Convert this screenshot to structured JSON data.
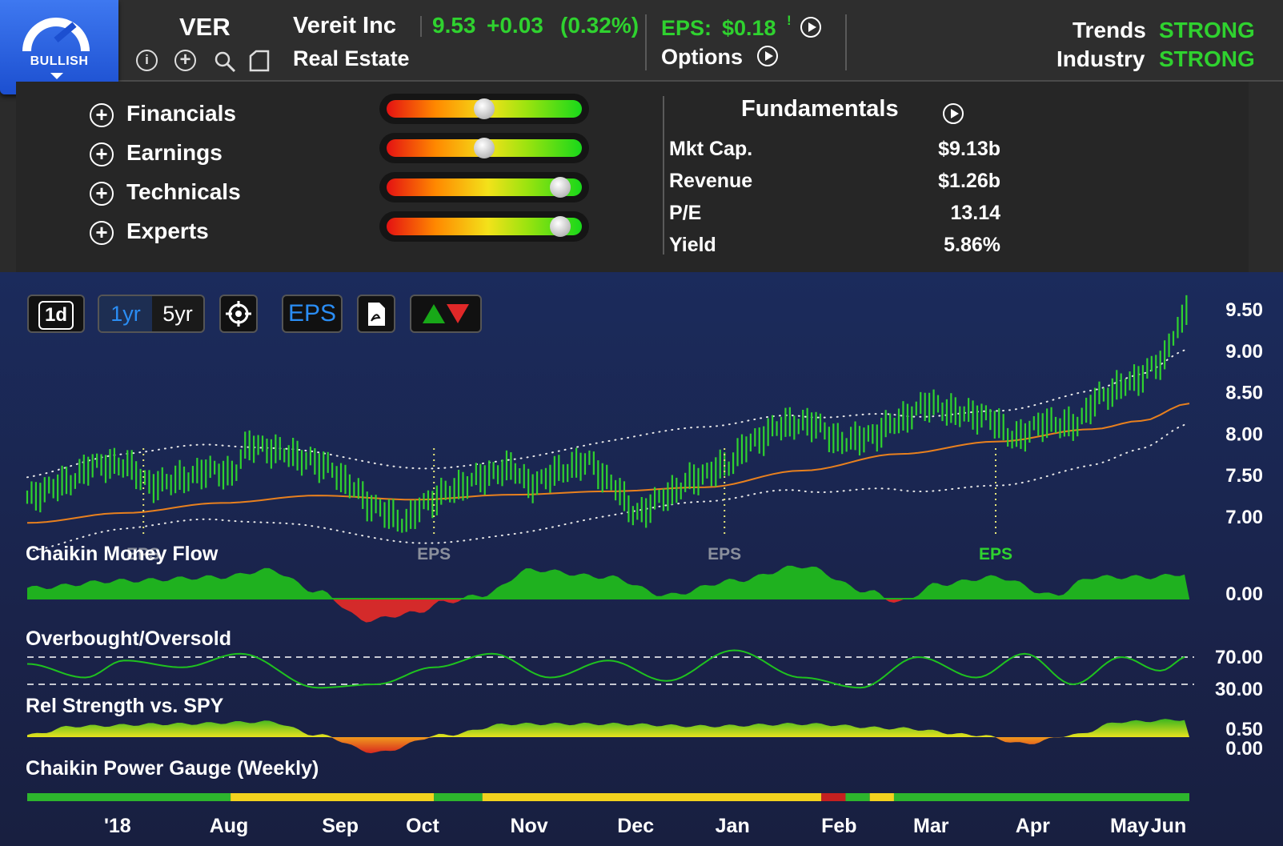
{
  "header": {
    "rating_label": "BULLISH",
    "ticker": "VER",
    "company_name": "Vereit Inc",
    "price": "9.53",
    "change": "+0.03",
    "change_pct": "(0.32%)",
    "sector": "Real Estate",
    "eps_label": "EPS:",
    "eps_value": "$0.18",
    "eps_alert": "!",
    "options_label": "Options",
    "trends_label": "Trends",
    "trends_value": "STRONG",
    "industry_label": "Industry",
    "industry_value": "STRONG",
    "icons": [
      "info-icon",
      "add-icon",
      "search-icon",
      "note-icon"
    ]
  },
  "scores": [
    {
      "label": "Financials",
      "level": 0.5
    },
    {
      "label": "Earnings",
      "level": 0.5
    },
    {
      "label": "Technicals",
      "level": 0.9
    },
    {
      "label": "Experts",
      "level": 0.9
    }
  ],
  "fundamentals": {
    "title": "Fundamentals",
    "rows": [
      {
        "label": "Mkt Cap.",
        "value": "$9.13b"
      },
      {
        "label": "Revenue",
        "value": "$1.26b"
      },
      {
        "label": "P/E",
        "value": "13.14"
      },
      {
        "label": "Yield",
        "value": "5.86%"
      }
    ]
  },
  "toolbar": {
    "btn_1d": "1d",
    "btn_1yr": "1yr",
    "btn_5yr": "5yr",
    "btn_eps": "EPS",
    "icons": [
      "crosshair-icon",
      "pdf-icon",
      "up-down-arrows-icon"
    ]
  },
  "colors": {
    "green": "#2fd22f",
    "red": "#e03030",
    "accent_blue": "#2a8df4",
    "ma_orange": "#e8801e",
    "panel_bg": "#2b2b2b",
    "chart_bg": "#1b2550"
  },
  "chart_data": {
    "type": "line",
    "price_axis_ticks": [
      "9.50",
      "9.00",
      "8.50",
      "8.00",
      "7.50",
      "7.00"
    ],
    "x_labels": [
      "'18",
      "Aug",
      "Sep",
      "Oct",
      "Nov",
      "Dec",
      "Jan",
      "Feb",
      "Mar",
      "Apr",
      "May",
      "Jun"
    ],
    "eps_markers": [
      {
        "label": "EPS",
        "month_pos": 1.2
      },
      {
        "label": "EPS",
        "month_pos": 4.2
      },
      {
        "label": "EPS",
        "month_pos": 7.2
      },
      {
        "label": "EPS",
        "month_pos": 10.0
      }
    ],
    "price_series": [
      {
        "t": 0.0,
        "y": 7.23
      },
      {
        "t": 0.4,
        "y": 7.4
      },
      {
        "t": 0.7,
        "y": 7.62
      },
      {
        "t": 1.0,
        "y": 7.62
      },
      {
        "t": 1.3,
        "y": 7.38
      },
      {
        "t": 1.6,
        "y": 7.45
      },
      {
        "t": 1.9,
        "y": 7.56
      },
      {
        "t": 2.1,
        "y": 7.5
      },
      {
        "t": 2.3,
        "y": 7.86
      },
      {
        "t": 2.6,
        "y": 7.78
      },
      {
        "t": 2.9,
        "y": 7.68
      },
      {
        "t": 3.1,
        "y": 7.6
      },
      {
        "t": 3.3,
        "y": 7.4
      },
      {
        "t": 3.6,
        "y": 7.1
      },
      {
        "t": 3.9,
        "y": 6.93
      },
      {
        "t": 4.1,
        "y": 7.15
      },
      {
        "t": 4.4,
        "y": 7.32
      },
      {
        "t": 4.7,
        "y": 7.48
      },
      {
        "t": 5.0,
        "y": 7.58
      },
      {
        "t": 5.2,
        "y": 7.38
      },
      {
        "t": 5.5,
        "y": 7.54
      },
      {
        "t": 5.8,
        "y": 7.66
      },
      {
        "t": 6.0,
        "y": 7.42
      },
      {
        "t": 6.3,
        "y": 7.03
      },
      {
        "t": 6.6,
        "y": 7.25
      },
      {
        "t": 6.9,
        "y": 7.46
      },
      {
        "t": 7.2,
        "y": 7.6
      },
      {
        "t": 7.5,
        "y": 7.9
      },
      {
        "t": 7.8,
        "y": 8.1
      },
      {
        "t": 8.1,
        "y": 8.12
      },
      {
        "t": 8.4,
        "y": 7.9
      },
      {
        "t": 8.7,
        "y": 7.96
      },
      {
        "t": 9.0,
        "y": 8.15
      },
      {
        "t": 9.3,
        "y": 8.35
      },
      {
        "t": 9.6,
        "y": 8.25
      },
      {
        "t": 9.9,
        "y": 8.2
      },
      {
        "t": 10.2,
        "y": 7.95
      },
      {
        "t": 10.5,
        "y": 8.12
      },
      {
        "t": 10.8,
        "y": 8.1
      },
      {
        "t": 11.1,
        "y": 8.45
      },
      {
        "t": 11.4,
        "y": 8.62
      },
      {
        "t": 11.7,
        "y": 8.85
      },
      {
        "t": 11.9,
        "y": 9.3
      },
      {
        "t": 12.0,
        "y": 9.53
      }
    ],
    "ma_series": [
      {
        "t": 0.0,
        "y": 6.92
      },
      {
        "t": 1.0,
        "y": 7.04
      },
      {
        "t": 2.0,
        "y": 7.16
      },
      {
        "t": 3.0,
        "y": 7.25
      },
      {
        "t": 4.0,
        "y": 7.2
      },
      {
        "t": 5.0,
        "y": 7.26
      },
      {
        "t": 6.0,
        "y": 7.3
      },
      {
        "t": 7.0,
        "y": 7.35
      },
      {
        "t": 8.0,
        "y": 7.55
      },
      {
        "t": 9.0,
        "y": 7.75
      },
      {
        "t": 10.0,
        "y": 7.9
      },
      {
        "t": 11.0,
        "y": 8.05
      },
      {
        "t": 11.5,
        "y": 8.15
      },
      {
        "t": 12.0,
        "y": 8.36
      }
    ],
    "cmf_series": [
      {
        "t": 0.0,
        "y": 0.15
      },
      {
        "t": 1.0,
        "y": 0.25
      },
      {
        "t": 2.0,
        "y": 0.3
      },
      {
        "t": 2.5,
        "y": 0.4
      },
      {
        "t": 3.0,
        "y": 0.1
      },
      {
        "t": 3.5,
        "y": -0.3
      },
      {
        "t": 4.0,
        "y": -0.2
      },
      {
        "t": 4.3,
        "y": -0.05
      },
      {
        "t": 4.7,
        "y": 0.05
      },
      {
        "t": 5.2,
        "y": 0.4
      },
      {
        "t": 6.0,
        "y": 0.3
      },
      {
        "t": 6.6,
        "y": 0.05
      },
      {
        "t": 7.3,
        "y": 0.25
      },
      {
        "t": 8.0,
        "y": 0.45
      },
      {
        "t": 8.7,
        "y": 0.1
      },
      {
        "t": 9.0,
        "y": -0.05
      },
      {
        "t": 9.4,
        "y": 0.2
      },
      {
        "t": 10.0,
        "y": 0.3
      },
      {
        "t": 10.6,
        "y": 0.05
      },
      {
        "t": 11.0,
        "y": 0.3
      },
      {
        "t": 11.6,
        "y": 0.3
      },
      {
        "t": 12.0,
        "y": 0.35
      }
    ],
    "obos_series": [
      {
        "t": 0.0,
        "y": 60
      },
      {
        "t": 0.6,
        "y": 40
      },
      {
        "t": 1.0,
        "y": 65
      },
      {
        "t": 1.6,
        "y": 55
      },
      {
        "t": 2.2,
        "y": 75
      },
      {
        "t": 3.0,
        "y": 25
      },
      {
        "t": 3.6,
        "y": 30
      },
      {
        "t": 4.2,
        "y": 55
      },
      {
        "t": 4.8,
        "y": 75
      },
      {
        "t": 5.4,
        "y": 40
      },
      {
        "t": 6.0,
        "y": 65
      },
      {
        "t": 6.6,
        "y": 35
      },
      {
        "t": 7.3,
        "y": 80
      },
      {
        "t": 8.0,
        "y": 40
      },
      {
        "t": 8.6,
        "y": 25
      },
      {
        "t": 9.2,
        "y": 70
      },
      {
        "t": 9.8,
        "y": 40
      },
      {
        "t": 10.3,
        "y": 75
      },
      {
        "t": 10.8,
        "y": 30
      },
      {
        "t": 11.3,
        "y": 70
      },
      {
        "t": 11.7,
        "y": 50
      },
      {
        "t": 12.0,
        "y": 72
      }
    ],
    "obos_levels": [
      "70.00",
      "30.00"
    ],
    "relstr_series": [
      {
        "t": 0.0,
        "y": 0.05
      },
      {
        "t": 0.5,
        "y": 0.25
      },
      {
        "t": 1.5,
        "y": 0.3
      },
      {
        "t": 2.5,
        "y": 0.35
      },
      {
        "t": 3.0,
        "y": 0.05
      },
      {
        "t": 3.6,
        "y": -0.35
      },
      {
        "t": 4.3,
        "y": 0.05
      },
      {
        "t": 5.0,
        "y": 0.3
      },
      {
        "t": 6.0,
        "y": 0.3
      },
      {
        "t": 7.0,
        "y": 0.25
      },
      {
        "t": 8.0,
        "y": 0.3
      },
      {
        "t": 9.0,
        "y": 0.2
      },
      {
        "t": 9.8,
        "y": 0.05
      },
      {
        "t": 10.3,
        "y": -0.15
      },
      {
        "t": 10.8,
        "y": 0.05
      },
      {
        "t": 11.3,
        "y": 0.35
      },
      {
        "t": 12.0,
        "y": 0.4
      }
    ],
    "relstr_ticks": [
      "0.50",
      "0.00"
    ],
    "cmf_tick": "0.00",
    "power_gauge": [
      {
        "from": 0.0,
        "to": 2.1,
        "color": "#2db52d"
      },
      {
        "from": 2.1,
        "to": 4.2,
        "color": "#f2d21e"
      },
      {
        "from": 4.2,
        "to": 4.7,
        "color": "#2db52d"
      },
      {
        "from": 4.7,
        "to": 8.2,
        "color": "#f2d21e"
      },
      {
        "from": 8.2,
        "to": 8.45,
        "color": "#c42020"
      },
      {
        "from": 8.45,
        "to": 8.7,
        "color": "#2db52d"
      },
      {
        "from": 8.7,
        "to": 8.95,
        "color": "#f2d21e"
      },
      {
        "from": 8.95,
        "to": 12.0,
        "color": "#2db52d"
      }
    ],
    "panel_titles": {
      "cmf": "Chaikin Money Flow",
      "obos": "Overbought/Oversold",
      "relstr": "Rel Strength vs. SPY",
      "power": "Chaikin Power Gauge (Weekly)"
    }
  }
}
